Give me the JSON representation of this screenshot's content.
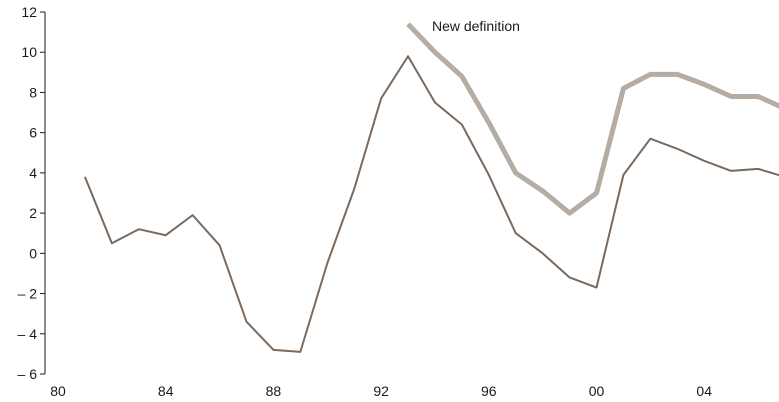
{
  "chart_data": {
    "type": "line",
    "title": "",
    "xlabel": "",
    "ylabel": "",
    "grid": false,
    "legend": "none",
    "xlim": [
      1980,
      2007
    ],
    "ylim": [
      -6,
      12
    ],
    "x_ticks": [
      {
        "value": 1980,
        "label": "80"
      },
      {
        "value": 1984,
        "label": "84"
      },
      {
        "value": 1988,
        "label": "88"
      },
      {
        "value": 1992,
        "label": "92"
      },
      {
        "value": 1996,
        "label": "96"
      },
      {
        "value": 2000,
        "label": "00"
      },
      {
        "value": 2004,
        "label": "04"
      }
    ],
    "y_ticks": [
      {
        "value": 12,
        "label": "12"
      },
      {
        "value": 10,
        "label": "10"
      },
      {
        "value": 8,
        "label": "8"
      },
      {
        "value": 6,
        "label": "6"
      },
      {
        "value": 4,
        "label": "4"
      },
      {
        "value": 2,
        "label": "2"
      },
      {
        "value": 0,
        "label": "0"
      },
      {
        "value": -2,
        "label": "– 2"
      },
      {
        "value": -4,
        "label": "– 4"
      },
      {
        "value": -6,
        "label": "– 6"
      }
    ],
    "series": [
      {
        "color": "#7a6a5e",
        "style": "thin",
        "x": [
          1981,
          1982,
          1983,
          1984,
          1985,
          1986,
          1987,
          1988,
          1989,
          1990,
          1991,
          1992,
          1993,
          1994,
          1995,
          1996,
          1997,
          1998,
          1999,
          2000,
          2001,
          2002,
          2003,
          2004,
          2005,
          2006,
          2007
        ],
        "values": [
          3.8,
          0.5,
          1.2,
          0.9,
          1.9,
          0.4,
          -3.4,
          -4.8,
          -4.9,
          -0.5,
          3.2,
          7.7,
          9.8,
          7.5,
          6.4,
          3.9,
          1.0,
          0.0,
          -1.2,
          -1.7,
          3.9,
          5.7,
          5.2,
          4.6,
          4.1,
          4.2,
          3.8
        ]
      },
      {
        "name": "New definition",
        "color": "#b5aca3",
        "style": "thick",
        "x": [
          1993,
          1994,
          1995,
          1996,
          1997,
          1998,
          1999,
          2000,
          2001,
          2002,
          2003,
          2004,
          2005,
          2006,
          2007
        ],
        "values": [
          11.4,
          10.0,
          8.8,
          6.5,
          4.0,
          3.1,
          2.0,
          3.0,
          8.2,
          8.9,
          8.9,
          8.4,
          7.8,
          7.8,
          7.2
        ]
      }
    ],
    "annotations": [
      {
        "text": "New definition",
        "series_index": 1,
        "near_x": 1994
      }
    ]
  }
}
